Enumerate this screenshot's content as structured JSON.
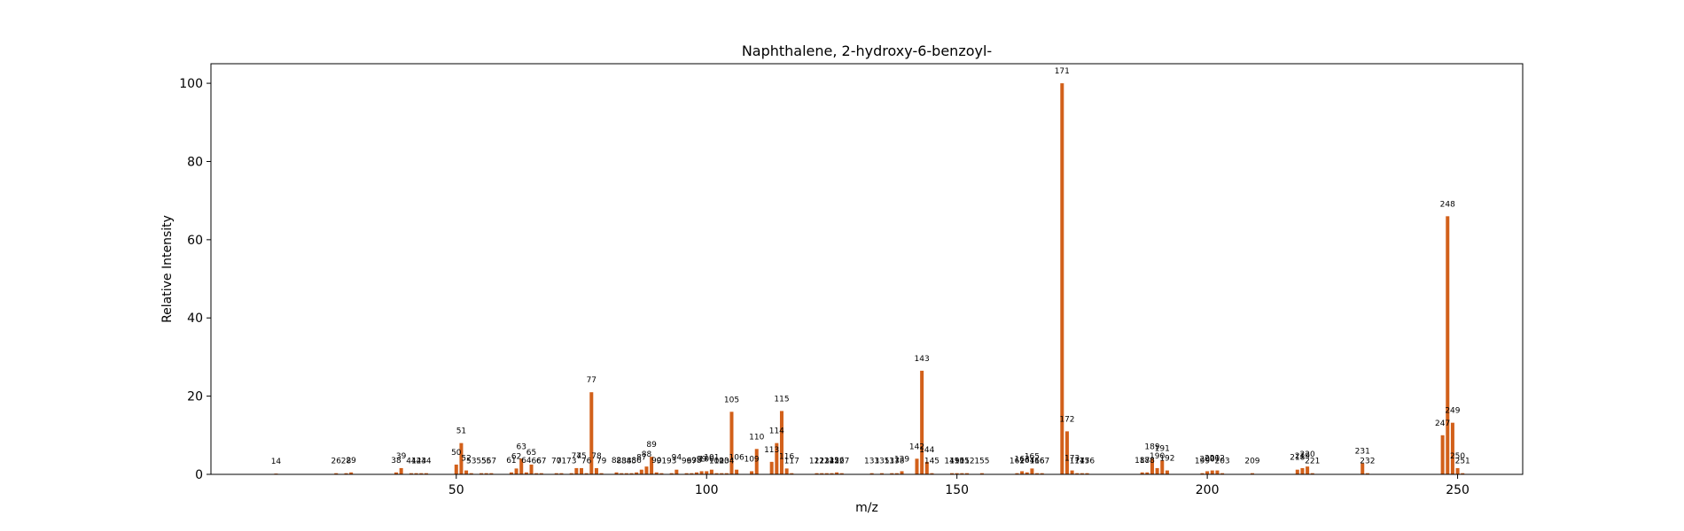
{
  "chart_data": {
    "type": "bar",
    "title": "Naphthalene, 2-hydroxy-6-benzoyl-",
    "xlabel": "m/z",
    "ylabel": "Relative Intensity",
    "xlim": [
      1,
      263
    ],
    "ylim": [
      0,
      105
    ],
    "xticks": [
      50,
      100,
      150,
      200,
      250
    ],
    "yticks": [
      0,
      20,
      40,
      60,
      80,
      100
    ],
    "grid": false,
    "legend": "none",
    "bar_color": "#d2601a",
    "peaks": [
      {
        "mz": 14,
        "intensity": 0.2
      },
      {
        "mz": 26,
        "intensity": 0.3
      },
      {
        "mz": 28,
        "intensity": 0.3
      },
      {
        "mz": 29,
        "intensity": 0.5
      },
      {
        "mz": 38,
        "intensity": 0.5
      },
      {
        "mz": 39,
        "intensity": 1.6
      },
      {
        "mz": 41,
        "intensity": 0.3
      },
      {
        "mz": 42,
        "intensity": 0.3
      },
      {
        "mz": 43,
        "intensity": 0.3
      },
      {
        "mz": 44,
        "intensity": 0.3
      },
      {
        "mz": 50,
        "intensity": 2.5
      },
      {
        "mz": 51,
        "intensity": 8.0
      },
      {
        "mz": 52,
        "intensity": 1.0
      },
      {
        "mz": 53,
        "intensity": 0.3
      },
      {
        "mz": 55,
        "intensity": 0.3
      },
      {
        "mz": 56,
        "intensity": 0.3
      },
      {
        "mz": 57,
        "intensity": 0.3
      },
      {
        "mz": 61,
        "intensity": 0.5
      },
      {
        "mz": 62,
        "intensity": 1.5
      },
      {
        "mz": 63,
        "intensity": 4.0
      },
      {
        "mz": 64,
        "intensity": 0.5
      },
      {
        "mz": 65,
        "intensity": 2.5
      },
      {
        "mz": 66,
        "intensity": 0.3
      },
      {
        "mz": 67,
        "intensity": 0.3
      },
      {
        "mz": 70,
        "intensity": 0.3
      },
      {
        "mz": 71,
        "intensity": 0.3
      },
      {
        "mz": 73,
        "intensity": 0.3
      },
      {
        "mz": 74,
        "intensity": 1.6
      },
      {
        "mz": 75,
        "intensity": 1.6
      },
      {
        "mz": 76,
        "intensity": 0.3
      },
      {
        "mz": 77,
        "intensity": 21.0
      },
      {
        "mz": 78,
        "intensity": 1.6
      },
      {
        "mz": 79,
        "intensity": 0.3
      },
      {
        "mz": 82,
        "intensity": 0.5
      },
      {
        "mz": 83,
        "intensity": 0.3
      },
      {
        "mz": 84,
        "intensity": 0.3
      },
      {
        "mz": 85,
        "intensity": 0.3
      },
      {
        "mz": 86,
        "intensity": 0.5
      },
      {
        "mz": 87,
        "intensity": 1.2
      },
      {
        "mz": 88,
        "intensity": 2.0
      },
      {
        "mz": 89,
        "intensity": 4.5
      },
      {
        "mz": 90,
        "intensity": 0.5
      },
      {
        "mz": 91,
        "intensity": 0.3
      },
      {
        "mz": 93,
        "intensity": 0.3
      },
      {
        "mz": 94,
        "intensity": 1.2
      },
      {
        "mz": 96,
        "intensity": 0.3
      },
      {
        "mz": 97,
        "intensity": 0.3
      },
      {
        "mz": 98,
        "intensity": 0.5
      },
      {
        "mz": 99,
        "intensity": 0.8
      },
      {
        "mz": 100,
        "intensity": 0.8
      },
      {
        "mz": 101,
        "intensity": 1.2
      },
      {
        "mz": 102,
        "intensity": 0.3
      },
      {
        "mz": 103,
        "intensity": 0.3
      },
      {
        "mz": 104,
        "intensity": 0.3
      },
      {
        "mz": 105,
        "intensity": 16.0
      },
      {
        "mz": 106,
        "intensity": 1.2
      },
      {
        "mz": 109,
        "intensity": 0.8
      },
      {
        "mz": 110,
        "intensity": 6.5
      },
      {
        "mz": 113,
        "intensity": 3.2
      },
      {
        "mz": 114,
        "intensity": 8.0
      },
      {
        "mz": 115,
        "intensity": 16.2
      },
      {
        "mz": 116,
        "intensity": 1.5
      },
      {
        "mz": 117,
        "intensity": 0.3
      },
      {
        "mz": 122,
        "intensity": 0.3
      },
      {
        "mz": 123,
        "intensity": 0.3
      },
      {
        "mz": 124,
        "intensity": 0.3
      },
      {
        "mz": 125,
        "intensity": 0.3
      },
      {
        "mz": 126,
        "intensity": 0.5
      },
      {
        "mz": 127,
        "intensity": 0.3
      },
      {
        "mz": 133,
        "intensity": 0.3
      },
      {
        "mz": 135,
        "intensity": 0.3
      },
      {
        "mz": 137,
        "intensity": 0.3
      },
      {
        "mz": 138,
        "intensity": 0.3
      },
      {
        "mz": 139,
        "intensity": 0.8
      },
      {
        "mz": 142,
        "intensity": 4.0
      },
      {
        "mz": 143,
        "intensity": 26.5
      },
      {
        "mz": 144,
        "intensity": 3.2
      },
      {
        "mz": 145,
        "intensity": 0.3
      },
      {
        "mz": 149,
        "intensity": 0.3
      },
      {
        "mz": 150,
        "intensity": 0.3
      },
      {
        "mz": 151,
        "intensity": 0.3
      },
      {
        "mz": 152,
        "intensity": 0.3
      },
      {
        "mz": 155,
        "intensity": 0.3
      },
      {
        "mz": 162,
        "intensity": 0.3
      },
      {
        "mz": 163,
        "intensity": 0.8
      },
      {
        "mz": 164,
        "intensity": 0.5
      },
      {
        "mz": 165,
        "intensity": 1.5
      },
      {
        "mz": 166,
        "intensity": 0.3
      },
      {
        "mz": 167,
        "intensity": 0.3
      },
      {
        "mz": 171,
        "intensity": 100.0
      },
      {
        "mz": 172,
        "intensity": 11.0
      },
      {
        "mz": 173,
        "intensity": 1.0
      },
      {
        "mz": 174,
        "intensity": 0.3
      },
      {
        "mz": 175,
        "intensity": 0.3
      },
      {
        "mz": 176,
        "intensity": 0.3
      },
      {
        "mz": 187,
        "intensity": 0.5
      },
      {
        "mz": 188,
        "intensity": 0.5
      },
      {
        "mz": 189,
        "intensity": 4.0
      },
      {
        "mz": 190,
        "intensity": 1.6
      },
      {
        "mz": 191,
        "intensity": 3.5
      },
      {
        "mz": 192,
        "intensity": 1.0
      },
      {
        "mz": 199,
        "intensity": 0.3
      },
      {
        "mz": 200,
        "intensity": 0.8
      },
      {
        "mz": 201,
        "intensity": 1.0
      },
      {
        "mz": 202,
        "intensity": 1.0
      },
      {
        "mz": 203,
        "intensity": 0.3
      },
      {
        "mz": 209,
        "intensity": 0.3
      },
      {
        "mz": 218,
        "intensity": 1.2
      },
      {
        "mz": 219,
        "intensity": 1.6
      },
      {
        "mz": 220,
        "intensity": 2.0
      },
      {
        "mz": 221,
        "intensity": 0.3
      },
      {
        "mz": 231,
        "intensity": 2.8
      },
      {
        "mz": 232,
        "intensity": 0.3
      },
      {
        "mz": 247,
        "intensity": 10.0
      },
      {
        "mz": 248,
        "intensity": 66.0
      },
      {
        "mz": 249,
        "intensity": 13.2
      },
      {
        "mz": 250,
        "intensity": 1.6
      },
      {
        "mz": 251,
        "intensity": 0.3
      }
    ]
  }
}
